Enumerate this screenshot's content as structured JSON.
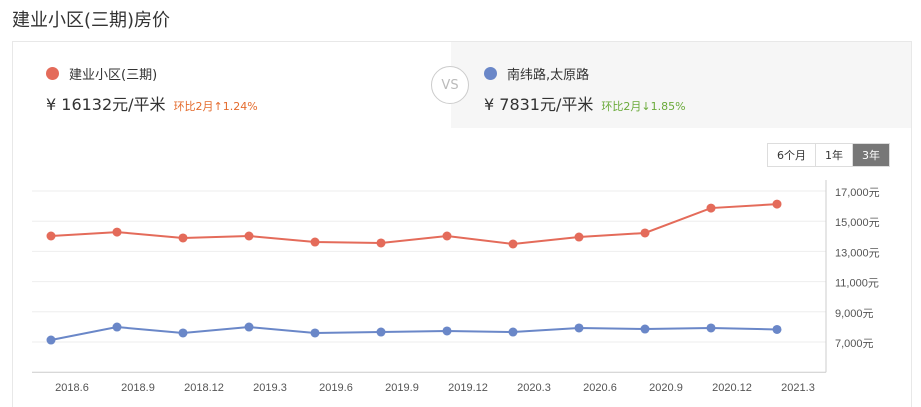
{
  "page_title": "建业小区(三期)房价",
  "left": {
    "name": "建业小区(三期)",
    "price": "¥ 16132元/平米",
    "change": "环比2月↑1.24%",
    "color": "#e46b5a",
    "change_color": "#e46b2d"
  },
  "vs_label": "VS",
  "right": {
    "name": "南纬路,太原路",
    "price": "¥ 7831元/平米",
    "change": "环比2月↓1.85%",
    "color": "#6a87c8",
    "change_color": "#6aaa3a"
  },
  "tabs": [
    {
      "label": "6个月",
      "active": false
    },
    {
      "label": "1年",
      "active": false
    },
    {
      "label": "3年",
      "active": true
    }
  ],
  "chart_data": {
    "type": "line",
    "x_tick_labels": [
      "2018.6",
      "2018.9",
      "2018.12",
      "2019.3",
      "2019.6",
      "2019.9",
      "2019.12",
      "2020.3",
      "2020.6",
      "2020.9",
      "2020.12",
      "2021.3"
    ],
    "y_tick_labels": [
      "17,000元",
      "15,000元",
      "13,000元",
      "11,000元",
      "9,000元",
      "7,000元"
    ],
    "y_ticks": [
      17000,
      15000,
      13000,
      11000,
      9000,
      7000
    ],
    "ylim": [
      5000,
      17000
    ],
    "grid": true,
    "series": [
      {
        "name": "建业小区(三期)",
        "color": "#e46b5a",
        "values": [
          14020,
          14280,
          13890,
          14020,
          13620,
          13560,
          14020,
          13490,
          13950,
          14220,
          15870,
          16132
        ]
      },
      {
        "name": "南纬路,太原路",
        "color": "#6a87c8",
        "values": [
          7130,
          7990,
          7600,
          7990,
          7600,
          7660,
          7730,
          7660,
          7930,
          7860,
          7930,
          7831
        ]
      }
    ]
  }
}
